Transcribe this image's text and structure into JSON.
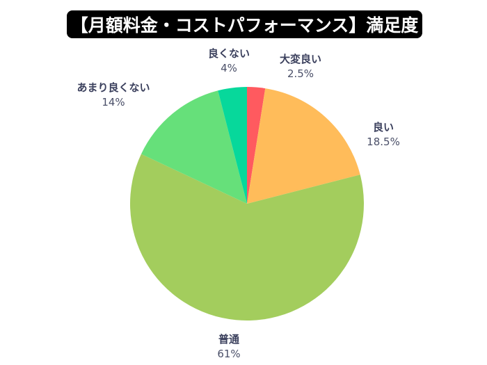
{
  "title": "【月額料金・コストパフォーマンス】満足度",
  "chart_data": {
    "type": "pie",
    "title": "【月額料金・コストパフォーマンス】満足度",
    "categories": [
      "大変良い",
      "良い",
      "普通",
      "あまり良くない",
      "良くない"
    ],
    "values": [
      2.5,
      18.5,
      61,
      14,
      4
    ],
    "value_labels": [
      "2.5%",
      "18.5%",
      "61%",
      "14%",
      "4%"
    ],
    "colors": [
      "#FF5A5F",
      "#FFBC5A",
      "#A3CD5D",
      "#66E07A",
      "#07D89B"
    ],
    "start_angle": "12 o'clock, clockwise",
    "legend": "none (labels outside slices)"
  },
  "labels": [
    {
      "name": "大変良い",
      "pct": "2.5%"
    },
    {
      "name": "良い",
      "pct": "18.5%"
    },
    {
      "name": "普通",
      "pct": "61%"
    },
    {
      "name": "あまり良くない",
      "pct": "14%"
    },
    {
      "name": "良くない",
      "pct": "4%"
    }
  ]
}
